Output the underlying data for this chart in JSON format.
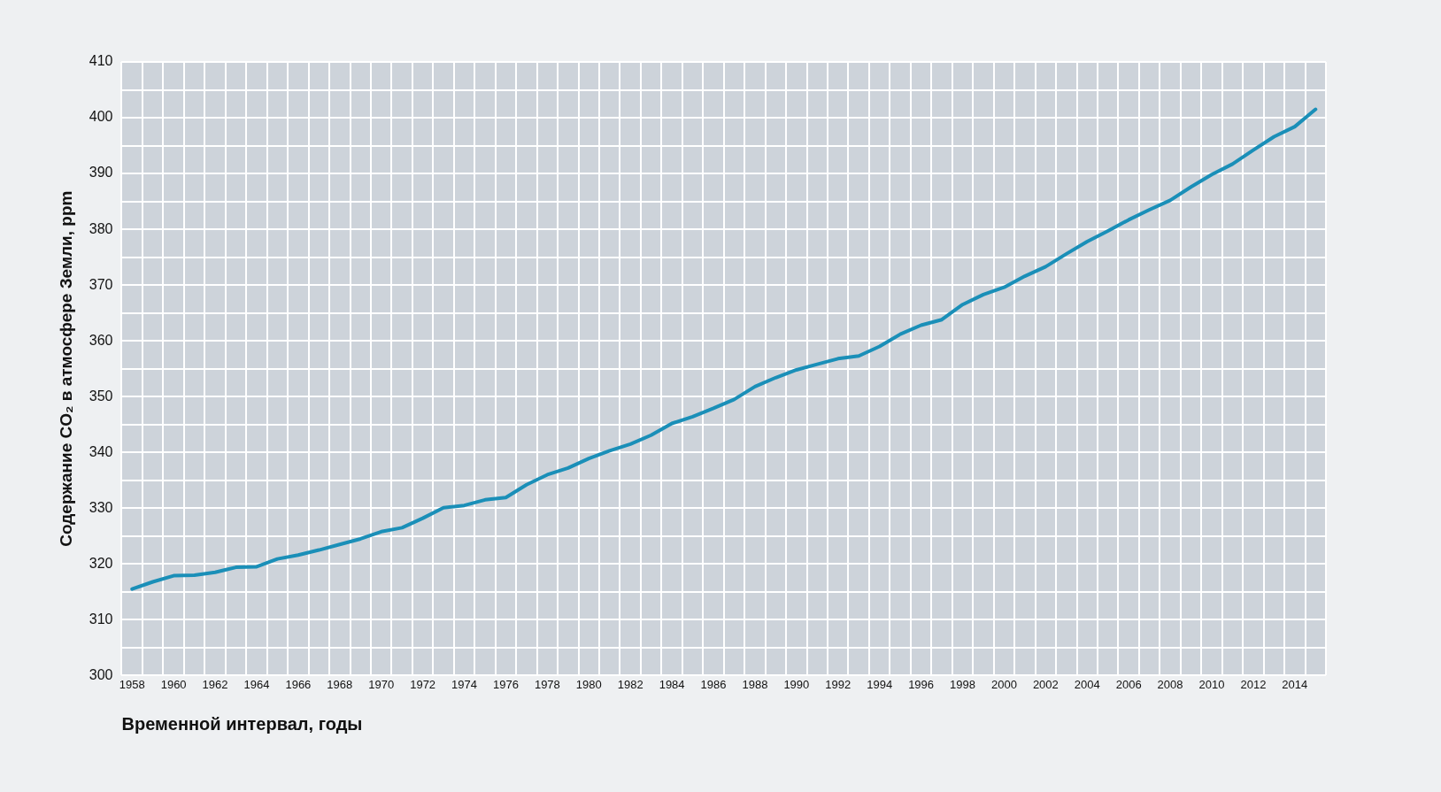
{
  "chart_data": {
    "type": "line",
    "xlabel": "Временной интервал, годы",
    "ylabel": "Содержание CO₂ в атмосфере Земли, ppm",
    "categories": [
      "1958",
      null,
      "1960",
      null,
      "1962",
      null,
      "1964",
      null,
      "1966",
      null,
      "1968",
      null,
      "1970",
      null,
      "1972",
      null,
      "1974",
      null,
      "1976",
      null,
      "1978",
      null,
      "1980",
      null,
      "1982",
      null,
      "1984",
      null,
      "1986",
      null,
      "1988",
      null,
      "1990",
      null,
      "1992",
      null,
      "1994",
      null,
      "1996",
      null,
      "1998",
      null,
      "2000",
      null,
      "2002",
      null,
      "2004",
      null,
      "2006",
      null,
      "2008",
      null,
      "2010",
      null,
      "2012",
      null,
      "2014",
      null
    ],
    "series": [
      {
        "color": "#1a8fb8",
        "values": [
          315.5,
          316.8,
          317.9,
          318.0,
          318.5,
          319.4,
          319.5,
          320.9,
          321.6,
          322.5,
          323.5,
          324.5,
          325.8,
          326.5,
          328.2,
          330.1,
          330.5,
          331.5,
          331.9,
          334.2,
          336.0,
          337.2,
          338.9,
          340.3,
          341.5,
          343.1,
          345.2,
          346.4,
          347.9,
          349.5,
          351.8,
          353.4,
          354.8,
          355.8,
          356.8,
          357.3,
          359.0,
          361.2,
          362.8,
          363.8,
          366.5,
          368.3,
          369.6,
          371.6,
          373.3,
          375.6,
          377.8,
          379.7,
          381.7,
          383.5,
          385.2,
          387.6,
          389.8,
          391.7,
          394.2,
          396.6,
          398.4,
          401.5
        ]
      }
    ],
    "ylim": [
      300,
      410
    ],
    "yticks": [
      300,
      {
        "value": 305,
        "label": null
      },
      310,
      {
        "value": 315,
        "label": null
      },
      320,
      {
        "value": 325,
        "label": null
      },
      330,
      {
        "value": 335,
        "label": null
      },
      340,
      {
        "value": 345,
        "label": null
      },
      350,
      {
        "value": 355,
        "label": null
      },
      360,
      {
        "value": 365,
        "label": null
      },
      370,
      {
        "value": 375,
        "label": null
      },
      380,
      {
        "value": 385,
        "label": null
      },
      390,
      {
        "value": 395,
        "label": null
      },
      400,
      {
        "value": 405,
        "label": null
      },
      410
    ],
    "grid": true,
    "legend": false,
    "marker": "none",
    "line_style": "solid"
  }
}
